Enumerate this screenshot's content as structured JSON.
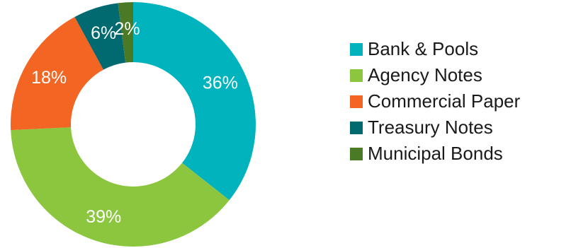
{
  "chart_data": {
    "type": "pie",
    "variant": "donut",
    "title": "",
    "legend_position": "right",
    "slices": [
      {
        "name": "Bank & Pools",
        "value": 36,
        "label": "36%",
        "color": "#00b3bd"
      },
      {
        "name": "Agency Notes",
        "value": 39,
        "label": "39%",
        "color": "#8cc63f"
      },
      {
        "name": "Commercial Paper",
        "value": 18,
        "label": "18%",
        "color": "#f26522"
      },
      {
        "name": "Treasury Notes",
        "value": 6,
        "label": "6%",
        "color": "#006a70"
      },
      {
        "name": "Municipal Bonds",
        "value": 2,
        "label": "2%",
        "color": "#4a7a25"
      }
    ]
  }
}
